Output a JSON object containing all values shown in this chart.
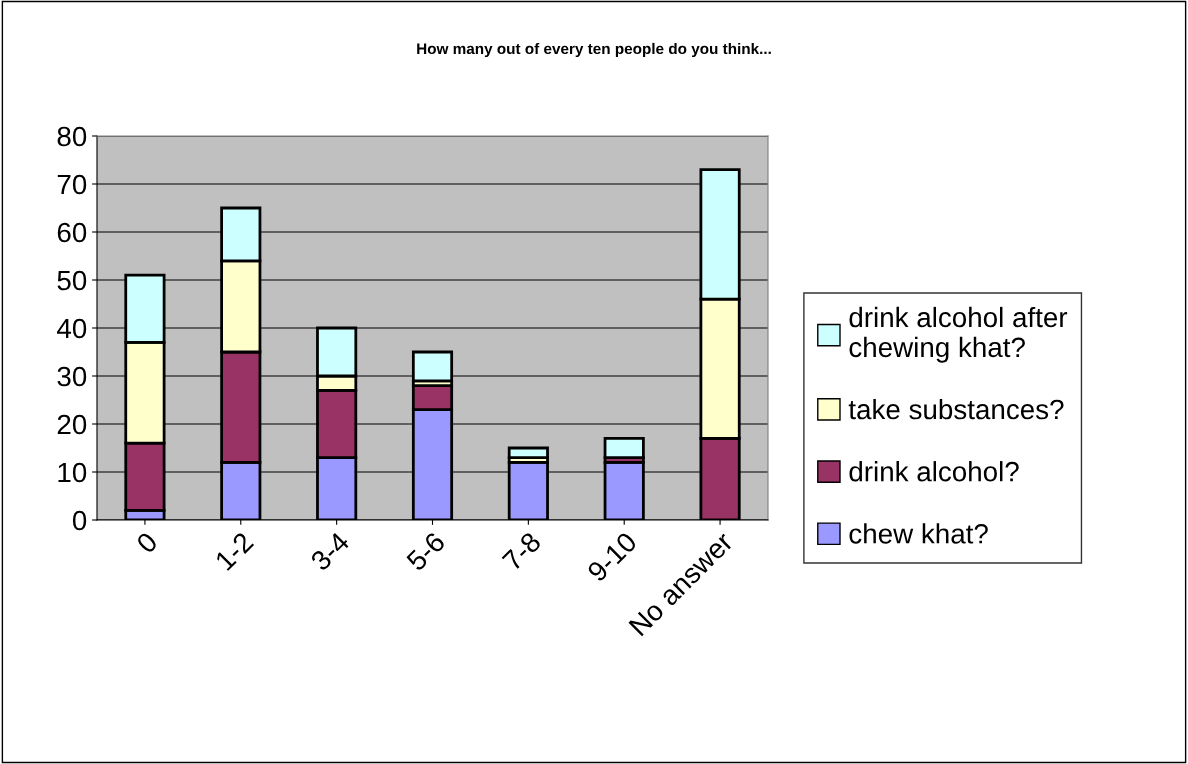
{
  "chart_data": {
    "type": "bar",
    "title": "How many out of every ten people do you think...",
    "categories": [
      "0",
      "1-2",
      "3-4",
      "5-6",
      "7-8",
      "9-10",
      "No answer"
    ],
    "stacked": true,
    "series": [
      {
        "name": "chew khat?",
        "color": "#9999ff",
        "values": [
          2,
          12,
          13,
          23,
          12,
          12,
          0
        ]
      },
      {
        "name": "drink alcohol?",
        "color": "#993366",
        "values": [
          14,
          23,
          14,
          5,
          0,
          1,
          17
        ]
      },
      {
        "name": "take substances?",
        "color": "#ffffcc",
        "values": [
          21,
          19,
          3,
          1,
          1,
          0,
          29
        ]
      },
      {
        "name": "drink alcohol after chewing khat?",
        "color": "#ccffff",
        "values": [
          14,
          11,
          10,
          6,
          2,
          4,
          27
        ]
      }
    ],
    "ylim": [
      0,
      80
    ],
    "yticks": [
      0,
      10,
      20,
      30,
      40,
      50,
      60,
      70,
      80
    ],
    "grid": "y",
    "legend": "right"
  }
}
